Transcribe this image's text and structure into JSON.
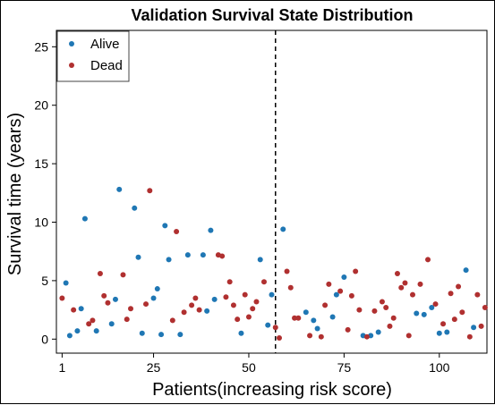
{
  "chart_data": {
    "type": "scatter",
    "title": "Validation Survival State Distribution",
    "xlabel": "Patients(increasing risk score)",
    "ylabel": "Survival time (years)",
    "xlim": [
      -0.5,
      112.5
    ],
    "ylim": [
      -1.2,
      26.4
    ],
    "xticks": [
      1,
      25,
      50,
      75,
      100
    ],
    "yticks": [
      0,
      5,
      10,
      15,
      20,
      25
    ],
    "vline": 57,
    "legend_position": "top-left",
    "colors": {
      "Alive": "#1f77b4",
      "Dead": "#b03030"
    },
    "series": [
      {
        "name": "Alive",
        "points": [
          [
            2,
            4.8
          ],
          [
            3,
            0.3
          ],
          [
            5,
            0.7
          ],
          [
            6,
            2.6
          ],
          [
            7,
            10.3
          ],
          [
            10,
            0.7
          ],
          [
            14,
            1.3
          ],
          [
            15,
            3.4
          ],
          [
            16,
            12.8
          ],
          [
            20,
            11.2
          ],
          [
            21,
            7.0
          ],
          [
            22,
            0.5
          ],
          [
            25,
            3.5
          ],
          [
            26,
            4.3
          ],
          [
            27,
            0.4
          ],
          [
            28,
            9.7
          ],
          [
            29,
            6.8
          ],
          [
            32,
            0.4
          ],
          [
            34,
            7.2
          ],
          [
            38,
            7.2
          ],
          [
            39,
            2.4
          ],
          [
            40,
            9.3
          ],
          [
            41,
            3.4
          ],
          [
            48,
            0.5
          ],
          [
            53,
            6.8
          ],
          [
            55,
            1.2
          ],
          [
            56,
            3.8
          ],
          [
            59,
            9.4
          ],
          [
            65,
            2.3
          ],
          [
            67,
            1.6
          ],
          [
            68,
            0.9
          ],
          [
            72,
            1.9
          ],
          [
            73,
            3.8
          ],
          [
            75,
            5.3
          ],
          [
            80,
            0.3
          ],
          [
            82,
            0.3
          ],
          [
            84,
            0.6
          ],
          [
            94,
            2.2
          ],
          [
            96,
            2.1
          ],
          [
            98,
            2.7
          ],
          [
            100,
            0.5
          ],
          [
            102,
            0.6
          ],
          [
            107,
            5.9
          ],
          [
            109,
            1.0
          ]
        ]
      },
      {
        "name": "Dead",
        "points": [
          [
            1,
            3.5
          ],
          [
            4,
            2.5
          ],
          [
            8,
            1.3
          ],
          [
            9,
            1.6
          ],
          [
            11,
            5.6
          ],
          [
            12,
            3.7
          ],
          [
            13,
            3.1
          ],
          [
            17,
            5.5
          ],
          [
            18,
            1.7
          ],
          [
            19,
            2.6
          ],
          [
            23,
            3.0
          ],
          [
            24,
            12.7
          ],
          [
            30,
            1.6
          ],
          [
            31,
            9.2
          ],
          [
            33,
            2.3
          ],
          [
            35,
            2.9
          ],
          [
            36,
            3.5
          ],
          [
            37,
            2.5
          ],
          [
            42,
            7.2
          ],
          [
            43,
            7.1
          ],
          [
            44,
            3.6
          ],
          [
            45,
            4.9
          ],
          [
            46,
            2.9
          ],
          [
            47,
            1.7
          ],
          [
            49,
            3.8
          ],
          [
            50,
            1.9
          ],
          [
            51,
            2.6
          ],
          [
            52,
            3.2
          ],
          [
            54,
            4.9
          ],
          [
            57,
            1.0
          ],
          [
            58,
            0.1
          ],
          [
            60,
            5.8
          ],
          [
            61,
            4.4
          ],
          [
            62,
            1.8
          ],
          [
            63,
            1.8
          ],
          [
            66,
            0.3
          ],
          [
            69,
            0.2
          ],
          [
            70,
            2.9
          ],
          [
            71,
            4.7
          ],
          [
            74,
            4.1
          ],
          [
            76,
            0.8
          ],
          [
            77,
            3.7
          ],
          [
            78,
            5.8
          ],
          [
            79,
            2.5
          ],
          [
            81,
            0.2
          ],
          [
            83,
            2.4
          ],
          [
            85,
            3.2
          ],
          [
            86,
            2.7
          ],
          [
            87,
            1.1
          ],
          [
            88,
            1.8
          ],
          [
            89,
            5.6
          ],
          [
            90,
            4.4
          ],
          [
            91,
            4.8
          ],
          [
            92,
            0.3
          ],
          [
            93,
            3.8
          ],
          [
            95,
            4.7
          ],
          [
            97,
            6.8
          ],
          [
            99,
            3.0
          ],
          [
            101,
            1.3
          ],
          [
            103,
            3.9
          ],
          [
            104,
            1.7
          ],
          [
            105,
            4.5
          ],
          [
            106,
            2.3
          ],
          [
            108,
            0.2
          ],
          [
            110,
            3.8
          ],
          [
            111,
            1.1
          ],
          [
            112,
            2.7
          ]
        ]
      }
    ]
  }
}
